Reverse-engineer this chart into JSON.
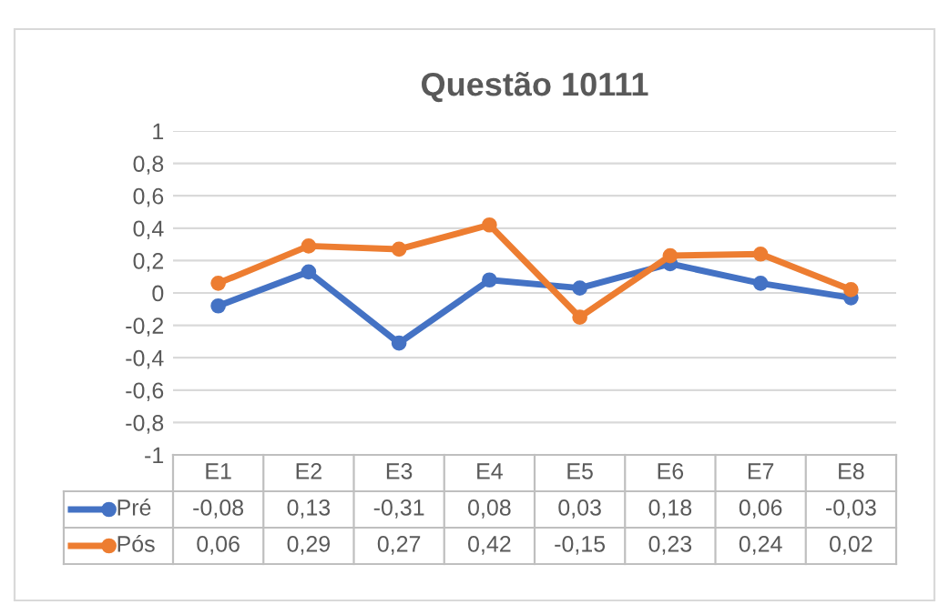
{
  "chart_data": {
    "type": "line",
    "title": "Questão 10111",
    "categories": [
      "E1",
      "E2",
      "E3",
      "E4",
      "E5",
      "E6",
      "E7",
      "E8"
    ],
    "series": [
      {
        "name": "Pré",
        "color": "#4472c4",
        "values": [
          -0.08,
          0.13,
          -0.31,
          0.08,
          0.03,
          0.18,
          0.06,
          -0.03
        ],
        "value_labels": [
          "-0,08",
          "0,13",
          "-0,31",
          "0,08",
          "0,03",
          "0,18",
          "0,06",
          "-0,03"
        ]
      },
      {
        "name": "Pós",
        "color": "#ed7d31",
        "values": [
          0.06,
          0.29,
          0.27,
          0.42,
          -0.15,
          0.23,
          0.24,
          0.02
        ],
        "value_labels": [
          "0,06",
          "0,29",
          "0,27",
          "0,42",
          "-0,15",
          "0,23",
          "0,24",
          "0,02"
        ]
      }
    ],
    "ylim": [
      -1,
      1
    ],
    "yticks": [
      1,
      {
        "value": 0.8,
        "label": "0,8"
      },
      {
        "value": 0.6,
        "label": "0,6"
      },
      {
        "value": 0.4,
        "label": "0,4"
      },
      {
        "value": 0.2,
        "label": "0,2"
      },
      0,
      {
        "value": -0.2,
        "label": "-0,2"
      },
      {
        "value": -0.4,
        "label": "-0,4"
      },
      {
        "value": -0.6,
        "label": "-0,6"
      },
      {
        "value": -0.8,
        "label": "-0,8"
      },
      -1
    ],
    "grid": "y",
    "legend": "bottom",
    "marker": "circle",
    "line_style": "solid"
  }
}
